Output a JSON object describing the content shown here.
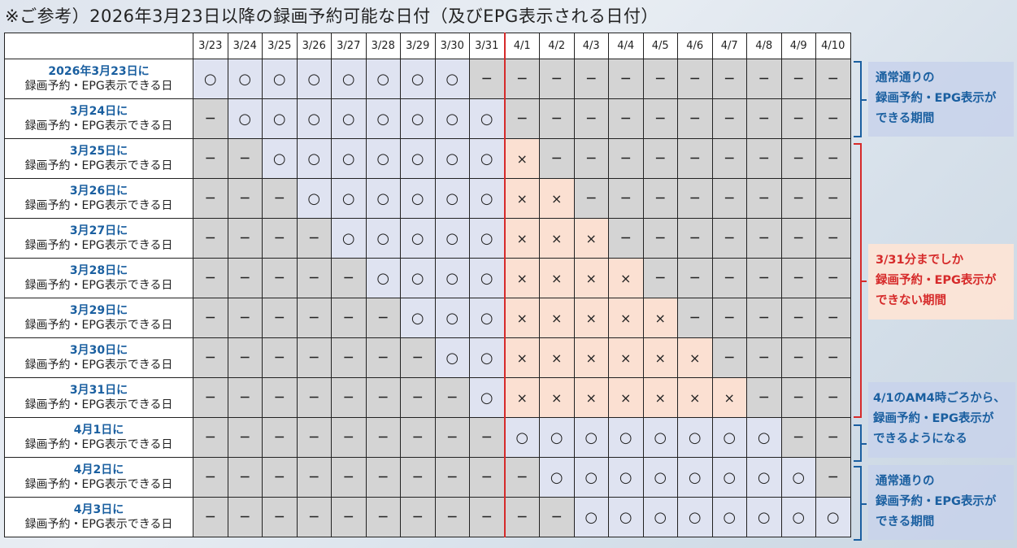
{
  "title": "※ご参考）2026年3月23日以降の録画予約可能な日付（及びEPG表示される日付）",
  "columns": [
    "3/23",
    "3/24",
    "3/25",
    "3/26",
    "3/27",
    "3/28",
    "3/29",
    "3/30",
    "3/31",
    "4/1",
    "4/2",
    "4/3",
    "4/4",
    "4/5",
    "4/6",
    "4/7",
    "4/8",
    "4/9",
    "4/10"
  ],
  "row_suffix": "録画予約・EPG表示できる日",
  "symbols": {
    "O": "○",
    "X": "×",
    "N": "－"
  },
  "colors": {
    "available": "#dfe3f1",
    "unavailable": "#fbe0d2",
    "none": "#d4d4d4",
    "blue": "#1a5fa0",
    "red": "#d62a2a"
  },
  "rows": [
    {
      "date": "2026年3月23日に",
      "cells": "OOOOOOOONNNNNNNNNNN"
    },
    {
      "date": "3月24日に",
      "cells": "NOOOOOOOONNNNNNNNNN"
    },
    {
      "date": "3月25日に",
      "cells": "NNOOOOOOOXNNNNNNNNN"
    },
    {
      "date": "3月26日に",
      "cells": "NNNOOOOOOXXNNNNNNNN"
    },
    {
      "date": "3月27日に",
      "cells": "NNNNOOOOOXXXNNNNNNN"
    },
    {
      "date": "3月28日に",
      "cells": "NNNNNOOOOXXXXNNNNNN"
    },
    {
      "date": "3月29日に",
      "cells": "NNNNNNOOOXXXXXNNNNN"
    },
    {
      "date": "3月30日に",
      "cells": "NNNNNNNOOXXXXXXNNNN"
    },
    {
      "date": "3月31日に",
      "cells": "NNNNNNNNOXXXXXXXNNN"
    },
    {
      "date": "4月1日に",
      "cells": "NNNNNNNNNOOOOOOOONN"
    },
    {
      "date": "4月2日に",
      "cells": "NNNNNNNNNNOOOOOOOON"
    },
    {
      "date": "4月3日に",
      "cells": "NNNNNNNNNNNOOOOOOOO"
    }
  ],
  "notes": [
    {
      "lines": [
        "通常通りの",
        "録画予約・EPG表示が",
        "できる期間"
      ]
    },
    {
      "lines": [
        "3/31分までしか",
        "録画予約・EPG表示が",
        "できない期間"
      ]
    },
    {
      "lines": [
        "4/1のAM4時ごろから、",
        "録画予約・EPG表示が",
        "できるようになる"
      ]
    },
    {
      "lines": [
        "通常通りの",
        "録画予約・EPG表示が",
        "できる期間"
      ]
    }
  ]
}
